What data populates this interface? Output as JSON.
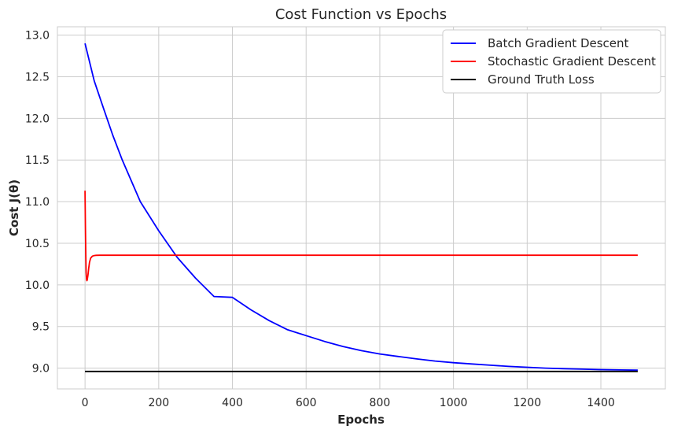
{
  "chart_data": {
    "type": "line",
    "title": "Cost Function vs Epochs",
    "xlabel": "Epochs",
    "ylabel": "Cost J(θ)",
    "xlim": [
      -75,
      1575
    ],
    "ylim": [
      8.75,
      13.1
    ],
    "xticks": [
      0,
      200,
      400,
      600,
      800,
      1000,
      1200,
      1400
    ],
    "xtick_labels": [
      "0",
      "200",
      "400",
      "600",
      "800",
      "1000",
      "1200",
      "1400"
    ],
    "yticks": [
      9.0,
      9.5,
      10.0,
      10.5,
      11.0,
      11.5,
      12.0,
      12.5,
      13.0
    ],
    "ytick_labels": [
      "9.0",
      "9.5",
      "10.0",
      "10.5",
      "11.0",
      "11.5",
      "12.0",
      "12.5",
      "13.0"
    ],
    "grid": true,
    "legend_position": "top-right",
    "series": [
      {
        "name": "Batch Gradient Descent",
        "color": "#0000ff",
        "x": [
          0,
          25,
          50,
          75,
          100,
          150,
          200,
          250,
          300,
          350,
          400,
          450,
          500,
          550,
          600,
          650,
          700,
          750,
          800,
          850,
          900,
          950,
          1000,
          1050,
          1100,
          1150,
          1200,
          1250,
          1300,
          1350,
          1400,
          1450,
          1500
        ],
        "y": [
          12.9,
          12.45,
          12.12,
          11.8,
          11.51,
          11.0,
          10.65,
          10.33,
          10.08,
          9.86,
          9.85,
          9.7,
          9.57,
          9.46,
          9.39,
          9.32,
          9.26,
          9.21,
          9.17,
          9.14,
          9.11,
          9.085,
          9.065,
          9.05,
          9.035,
          9.02,
          9.01,
          9.0,
          8.993,
          8.987,
          8.982,
          8.978,
          8.975
        ]
      },
      {
        "name": "Stochastic Gradient Descent",
        "color": "#ff0000",
        "x": [
          0,
          1,
          2,
          3,
          4,
          5,
          6,
          8,
          10,
          12,
          15,
          20,
          25,
          30,
          40,
          50,
          100,
          500,
          1000,
          1500
        ],
        "y": [
          11.13,
          10.7,
          10.35,
          10.15,
          10.07,
          10.05,
          10.06,
          10.12,
          10.2,
          10.27,
          10.32,
          10.345,
          10.352,
          10.355,
          10.356,
          10.356,
          10.356,
          10.356,
          10.356,
          10.356
        ]
      },
      {
        "name": "Ground Truth Loss",
        "color": "#000000",
        "x": [
          0,
          1500
        ],
        "y": [
          8.96,
          8.96
        ]
      }
    ]
  }
}
